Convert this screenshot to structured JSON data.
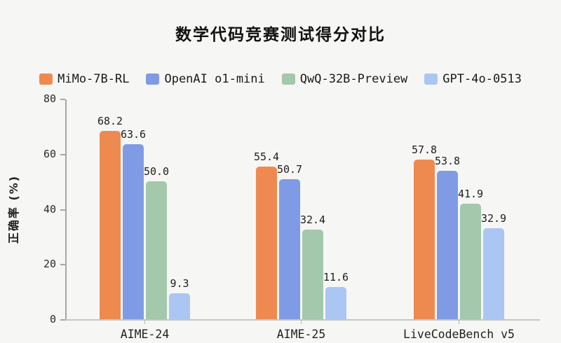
{
  "chart_data": {
    "type": "bar",
    "title": "数学代码竞赛测试得分对比",
    "ylabel": "正确率 (%)",
    "xlabel": "",
    "ylim": [
      0,
      80
    ],
    "yticks": [
      0,
      20,
      40,
      60,
      80
    ],
    "grid": false,
    "legend_position": "top",
    "value_labels_decimals": 1,
    "categories": [
      "AIME-24",
      "AIME-25",
      "LiveCodeBench v5"
    ],
    "series": [
      {
        "name": "MiMo-7B-RL",
        "color": "#EE8A50",
        "values": [
          68.2,
          55.4,
          57.8
        ]
      },
      {
        "name": "OpenAI o1-mini",
        "color": "#7F9BE5",
        "values": [
          63.6,
          50.7,
          53.8
        ]
      },
      {
        "name": "QwQ-32B-Preview",
        "color": "#A3C8AB",
        "values": [
          50.0,
          32.4,
          41.9
        ]
      },
      {
        "name": "GPT-4o-0513",
        "color": "#ABC6F2",
        "values": [
          9.3,
          11.6,
          32.9
        ]
      }
    ]
  },
  "style": {
    "background": "#F6F6F4",
    "axis_color": "#a6a6a6",
    "baseline_color": "#c6c6c6",
    "text_color": "#1c1c1c"
  }
}
